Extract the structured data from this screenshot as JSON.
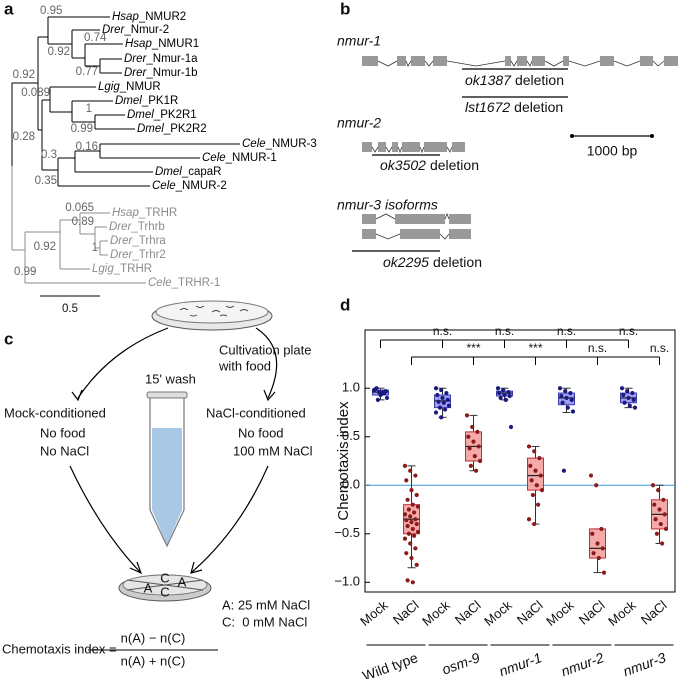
{
  "panel_labels": [
    "a",
    "b",
    "c",
    "d"
  ],
  "tree": {
    "clades": [
      {
        "color": "#000000",
        "leaves": [
          {
            "species": "Hsap",
            "gene": "_NMUR2"
          },
          {
            "species": "Drer",
            "gene": "_Nmur-2"
          },
          {
            "species": "Hsap",
            "gene": "_NMUR1"
          },
          {
            "species": "Drer",
            "gene": "_Nmur-1a"
          },
          {
            "species": "Drer",
            "gene": "_Nmur-1b"
          },
          {
            "species": "Lgig",
            "gene": "_NMUR"
          },
          {
            "species": "Dmel",
            "gene": "_PK1R"
          },
          {
            "species": "Dmel",
            "gene": "_PK2R1"
          },
          {
            "species": "Dmel",
            "gene": "_PK2R2"
          },
          {
            "species": "Cele",
            "gene": "_NMUR-3"
          },
          {
            "species": "Cele",
            "gene": "_NMUR-1"
          },
          {
            "species": "Dmel",
            "gene": "_capaR"
          },
          {
            "species": "Cele",
            "gene": "_NMUR-2"
          }
        ]
      },
      {
        "color": "#8c8c8c",
        "leaves": [
          {
            "species": "Hsap",
            "gene": "_TRHR"
          },
          {
            "species": "Drer",
            "gene": "_Trhrb"
          },
          {
            "species": "Drer",
            "gene": "_Trhra"
          },
          {
            "species": "Drer",
            "gene": "_Trhr2"
          },
          {
            "species": "Lgig",
            "gene": "_TRHR"
          },
          {
            "species": "Cele",
            "gene": "_TRHR-1"
          }
        ]
      }
    ],
    "support": [
      "0.95",
      "0.92",
      "0.74",
      "0.77",
      "0.92",
      "0.089",
      "1",
      "0.99",
      "0.28",
      "0.16",
      "0.3",
      "0.35",
      "0.065",
      "0.89",
      "1",
      "0.92",
      "0.99"
    ],
    "scale_bar": "0.5"
  },
  "genes": {
    "loci": [
      {
        "name": "nmur-1",
        "deletions": [
          {
            "allele": "ok1387",
            "text": "deletion"
          },
          {
            "allele": "lst1672",
            "text": "deletion"
          }
        ]
      },
      {
        "name": "nmur-2",
        "deletions": [
          {
            "allele": "ok3502",
            "text": "deletion"
          }
        ]
      },
      {
        "name": "nmur-3 isoforms",
        "deletions": [
          {
            "allele": "ok2295",
            "text": "deletion"
          }
        ]
      }
    ],
    "scale_bar": "1000 bp"
  },
  "assay": {
    "plate_label": [
      "Cultivation plate",
      "with food"
    ],
    "wash": "15' wash",
    "mock": {
      "title": "Mock-conditioned",
      "lines": [
        "No food",
        "No NaCl"
      ],
      "color": "#1a1ad0"
    },
    "nacl": {
      "title": "NaCl-conditioned",
      "lines": [
        "No food",
        "100 mM NaCl"
      ],
      "color": "#e31a1a"
    },
    "plate_zones": [
      "A",
      "C",
      "A",
      "C"
    ],
    "legend": [
      "A: 25 mM NaCl",
      "C:  0 mM NaCl"
    ],
    "formula": {
      "lhs": "Chemotaxis index =",
      "numerator": "n(A) − n(C)",
      "denominator": "n(A) + n(C)"
    }
  },
  "chart_data": {
    "type": "box",
    "y_label": "Chemotaxis index",
    "ylim": [
      -1.1,
      1.6
    ],
    "yticks": [
      {
        "value": -1,
        "label": "−1.0"
      },
      {
        "value": -0.5,
        "label": "−0.5"
      },
      {
        "value": 0,
        "label": "0.0"
      },
      0.5,
      {
        "value": 1,
        "label": "1.0"
      }
    ],
    "reference_line": 0,
    "reference_color": "#3a9ad9",
    "categories": [
      "Mock",
      "NaCl",
      "Mock",
      "NaCl",
      "Mock",
      "NaCl",
      "Mock",
      "NaCl",
      "Mock",
      "NaCl"
    ],
    "strains": [
      {
        "name": "Wild type",
        "italic": false
      },
      {
        "name": "osm-9",
        "italic": true
      },
      {
        "name": "nmur-1",
        "italic": true
      },
      {
        "name": "nmur-2",
        "italic": true
      },
      {
        "name": "nmur-3",
        "italic": true
      }
    ],
    "boxes": [
      {
        "whisker_low": 0.88,
        "q1": 0.93,
        "median": 0.96,
        "q3": 0.98,
        "whisker_high": 1.0,
        "fill": "#8c8cf0",
        "edge": "#3b3bb0",
        "point_color": "#1a1a80",
        "label_color": "#1a1ad0",
        "points": [
          0.98,
          0.96,
          0.95,
          0.99,
          0.93,
          0.97,
          1.0,
          0.94,
          0.9,
          0.88,
          0.96,
          0.98
        ]
      },
      {
        "whisker_low": -0.85,
        "q1": -0.5,
        "median": -0.35,
        "q3": -0.2,
        "whisker_high": 0.2,
        "fill": "#f59a9a",
        "edge": "#c03030",
        "point_color": "#8b1a1a",
        "label_color": "#e31a1a",
        "points": [
          0.2,
          0.15,
          0.1,
          0.05,
          -0.05,
          -0.1,
          -0.15,
          -0.2,
          -0.22,
          -0.25,
          -0.28,
          -0.3,
          -0.32,
          -0.35,
          -0.36,
          -0.38,
          -0.4,
          -0.42,
          -0.45,
          -0.48,
          -0.5,
          -0.52,
          -0.55,
          -0.6,
          -0.65,
          -0.7,
          -0.75,
          -0.82,
          -0.98,
          -1.0
        ]
      },
      {
        "whisker_low": 0.7,
        "q1": 0.8,
        "median": 0.87,
        "q3": 0.93,
        "whisker_high": 1.0,
        "fill": "#8c8cf0",
        "edge": "#3b3bb0",
        "point_color": "#1a1a80",
        "label_color": "#1a1ad0",
        "points": [
          1.0,
          0.98,
          0.95,
          0.93,
          0.9,
          0.88,
          0.86,
          0.85,
          0.82,
          0.8,
          0.78,
          0.75,
          0.7
        ]
      },
      {
        "whisker_low": 0.15,
        "q1": 0.25,
        "median": 0.4,
        "q3": 0.55,
        "whisker_high": 0.72,
        "fill": "#f59a9a",
        "edge": "#c03030",
        "point_color": "#8b1a1a",
        "label_color": "#e31a1a",
        "points": [
          0.72,
          0.6,
          0.55,
          0.5,
          0.45,
          0.4,
          0.38,
          0.3,
          0.25,
          0.2,
          0.15
        ]
      },
      {
        "whisker_low": 0.88,
        "q1": 0.92,
        "median": 0.95,
        "q3": 0.97,
        "whisker_high": 1.0,
        "fill": "#8c8cf0",
        "edge": "#3b3bb0",
        "point_color": "#1a1a80",
        "label_color": "#1a1ad0",
        "points": [
          1.0,
          0.98,
          0.96,
          0.95,
          0.93,
          0.92,
          0.9,
          0.88,
          0.6
        ]
      },
      {
        "whisker_low": -0.4,
        "q1": -0.05,
        "median": 0.1,
        "q3": 0.28,
        "whisker_high": 0.4,
        "fill": "#f59a9a",
        "edge": "#c03030",
        "point_color": "#8b1a1a",
        "label_color": "#e31a1a",
        "points": [
          0.4,
          0.35,
          0.28,
          0.2,
          0.15,
          0.1,
          0.05,
          0.0,
          -0.05,
          -0.1,
          -0.2,
          -0.35,
          -0.4
        ]
      },
      {
        "whisker_low": 0.75,
        "q1": 0.83,
        "median": 0.9,
        "q3": 0.95,
        "whisker_high": 1.0,
        "fill": "#8c8cf0",
        "edge": "#3b3bb0",
        "point_color": "#1a1a80",
        "label_color": "#1a1ad0",
        "points": [
          1.0,
          0.97,
          0.95,
          0.92,
          0.9,
          0.88,
          0.85,
          0.8,
          0.76,
          0.15
        ]
      },
      {
        "whisker_low": -0.9,
        "q1": -0.75,
        "median": -0.65,
        "q3": -0.45,
        "whisker_high": -0.45,
        "fill": "#f59a9a",
        "edge": "#c03030",
        "point_color": "#8b1a1a",
        "label_color": "#e31a1a",
        "points": [
          0.1,
          0.0,
          -0.45,
          -0.5,
          -0.6,
          -0.65,
          -0.7,
          -0.75,
          -0.9
        ]
      },
      {
        "whisker_low": 0.8,
        "q1": 0.85,
        "median": 0.9,
        "q3": 0.95,
        "whisker_high": 1.0,
        "fill": "#8c8cf0",
        "edge": "#3b3bb0",
        "point_color": "#1a1a80",
        "label_color": "#1a1ad0",
        "points": [
          1.0,
          0.97,
          0.95,
          0.93,
          0.9,
          0.88,
          0.85,
          0.82,
          0.8
        ]
      },
      {
        "whisker_low": -0.6,
        "q1": -0.45,
        "median": -0.3,
        "q3": -0.15,
        "whisker_high": 0.0,
        "fill": "#f59a9a",
        "edge": "#c03030",
        "point_color": "#8b1a1a",
        "label_color": "#e31a1a",
        "points": [
          0.0,
          -0.05,
          -0.15,
          -0.2,
          -0.25,
          -0.3,
          -0.35,
          -0.4,
          -0.45,
          -0.5,
          -0.6
        ]
      }
    ],
    "comparisons": [
      {
        "reference": 0,
        "targets": [
          2,
          4,
          6,
          8
        ],
        "labels": [
          "n.s.",
          "n.s.",
          "n.s.",
          "n.s."
        ],
        "color": "#2a2acc"
      },
      {
        "reference": 1,
        "targets": [
          3,
          5,
          7,
          9
        ],
        "labels": [
          "***",
          "***",
          "n.s.",
          "n.s."
        ],
        "color": "#e31a1a"
      }
    ]
  }
}
